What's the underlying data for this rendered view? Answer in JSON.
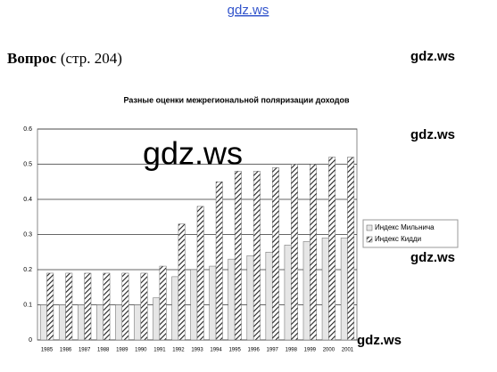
{
  "header": {
    "site": "gdz.ws"
  },
  "question": {
    "label": "Вопрос",
    "page": "(стр. 204)"
  },
  "watermarks": [
    "gdz.ws",
    "gdz.ws",
    "gdz.ws",
    "gdz.ws",
    "gdz.ws"
  ],
  "chart_data": {
    "type": "bar",
    "title": "Разные оценки межрегиональной поляризации доходов",
    "categories": [
      "1985",
      "1986",
      "1987",
      "1988",
      "1989",
      "1990",
      "1991",
      "1992",
      "1993",
      "1994",
      "1995",
      "1996",
      "1997",
      "1998",
      "1999",
      "2000",
      "2001"
    ],
    "series": [
      {
        "name": "Индекс Мильнича",
        "color": "#e6e6e6",
        "values": [
          0.1,
          0.1,
          0.1,
          0.1,
          0.1,
          0.1,
          0.12,
          0.18,
          0.2,
          0.21,
          0.23,
          0.24,
          0.25,
          0.27,
          0.28,
          0.29,
          0.29
        ]
      },
      {
        "name": "Индекс Кидди",
        "color": "#555555",
        "values": [
          0.19,
          0.19,
          0.19,
          0.19,
          0.19,
          0.19,
          0.21,
          0.33,
          0.38,
          0.45,
          0.48,
          0.48,
          0.49,
          0.5,
          0.5,
          0.52,
          0.52
        ]
      }
    ],
    "ylim": [
      0,
      0.6
    ],
    "yticks": [
      0,
      0.1,
      0.2,
      0.3,
      0.4,
      0.5,
      0.6
    ],
    "grid": true
  }
}
